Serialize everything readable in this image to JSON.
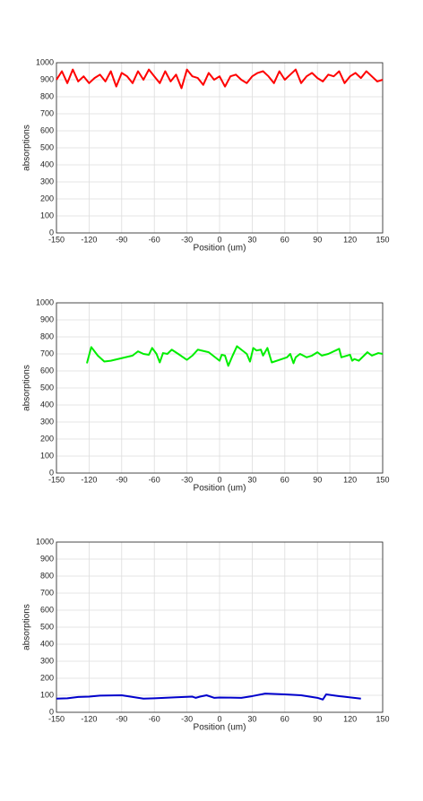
{
  "chart_data": [
    {
      "type": "line",
      "xlabel": "Position (um)",
      "ylabel": "absorptions",
      "grid": true,
      "xlim": [
        -150,
        150
      ],
      "xticks": [
        -150,
        -120,
        -90,
        -60,
        -30,
        0,
        30,
        60,
        90,
        120,
        150
      ],
      "ylim": [
        0,
        1000
      ],
      "yticks": [
        0,
        100,
        200,
        300,
        400,
        500,
        600,
        700,
        800,
        900,
        1000
      ],
      "x": [
        -150,
        -145,
        -140,
        -135,
        -130,
        -125,
        -120,
        -115,
        -110,
        -105,
        -100,
        -95,
        -90,
        -85,
        -80,
        -75,
        -70,
        -65,
        -60,
        -55,
        -50,
        -45,
        -40,
        -35,
        -30,
        -25,
        -20,
        -15,
        -10,
        -5,
        0,
        5,
        10,
        15,
        20,
        25,
        30,
        35,
        40,
        45,
        50,
        55,
        60,
        65,
        70,
        75,
        80,
        85,
        90,
        95,
        100,
        105,
        110,
        115,
        120,
        125,
        130,
        135,
        140,
        145,
        150
      ],
      "series": [
        {
          "color": "#ff0000",
          "values": [
            900,
            950,
            880,
            960,
            890,
            920,
            880,
            910,
            930,
            890,
            950,
            860,
            940,
            920,
            880,
            950,
            900,
            960,
            920,
            880,
            950,
            890,
            930,
            850,
            960,
            920,
            910,
            870,
            940,
            900,
            920,
            860,
            920,
            930,
            900,
            880,
            920,
            940,
            950,
            920,
            880,
            950,
            900,
            930,
            960,
            880,
            920,
            940,
            910,
            890,
            930,
            920,
            950,
            880,
            920,
            940,
            910,
            950,
            920,
            890,
            900
          ]
        }
      ]
    },
    {
      "type": "line",
      "xlabel": "Position (um)",
      "ylabel": "absorptions",
      "grid": true,
      "xlim": [
        -150,
        150
      ],
      "xticks": [
        -150,
        -120,
        -90,
        -60,
        -30,
        0,
        30,
        60,
        90,
        120,
        150
      ],
      "ylim": [
        0,
        1000
      ],
      "yticks": [
        0,
        100,
        200,
        300,
        400,
        500,
        600,
        700,
        800,
        900,
        1000
      ],
      "x": [
        -122,
        -118,
        -112,
        -106,
        -100,
        -90,
        -80,
        -75,
        -70,
        -65,
        -62,
        -58,
        -55,
        -52,
        -48,
        -44,
        -38,
        -30,
        -25,
        -20,
        -10,
        0,
        2,
        5,
        8,
        12,
        16,
        20,
        25,
        28,
        31,
        34,
        38,
        40,
        44,
        48,
        55,
        62,
        65,
        68,
        70,
        74,
        80,
        85,
        90,
        94,
        100,
        110,
        112,
        120,
        122,
        124,
        128,
        132,
        136,
        140,
        146,
        150
      ],
      "series": [
        {
          "color": "#00ee00",
          "values": [
            645,
            740,
            690,
            655,
            660,
            675,
            690,
            715,
            700,
            695,
            735,
            700,
            650,
            705,
            700,
            725,
            700,
            665,
            690,
            725,
            710,
            660,
            695,
            690,
            630,
            690,
            745,
            725,
            700,
            655,
            735,
            720,
            725,
            690,
            735,
            650,
            665,
            680,
            700,
            645,
            680,
            700,
            680,
            690,
            710,
            690,
            700,
            730,
            680,
            695,
            660,
            670,
            660,
            685,
            710,
            690,
            705,
            700
          ]
        }
      ]
    },
    {
      "type": "line",
      "xlabel": "Position (um)",
      "ylabel": "absorptions",
      "grid": true,
      "xlim": [
        -150,
        150
      ],
      "xticks": [
        -150,
        -120,
        -90,
        -60,
        -30,
        0,
        30,
        60,
        90,
        120,
        150
      ],
      "ylim": [
        0,
        1000
      ],
      "yticks": [
        0,
        100,
        200,
        300,
        400,
        500,
        600,
        700,
        800,
        900,
        1000
      ],
      "x": [
        -150,
        -140,
        -130,
        -120,
        -110,
        -90,
        -70,
        -60,
        -40,
        -25,
        -22,
        -18,
        -12,
        -5,
        0,
        10,
        20,
        30,
        42,
        60,
        75,
        90,
        95,
        98,
        110,
        130
      ],
      "series": [
        {
          "color": "#0000cc",
          "values": [
            80,
            82,
            90,
            92,
            98,
            100,
            80,
            82,
            88,
            92,
            85,
            92,
            100,
            85,
            87,
            86,
            85,
            95,
            110,
            105,
            100,
            85,
            75,
            105,
            95,
            80
          ]
        }
      ]
    }
  ]
}
